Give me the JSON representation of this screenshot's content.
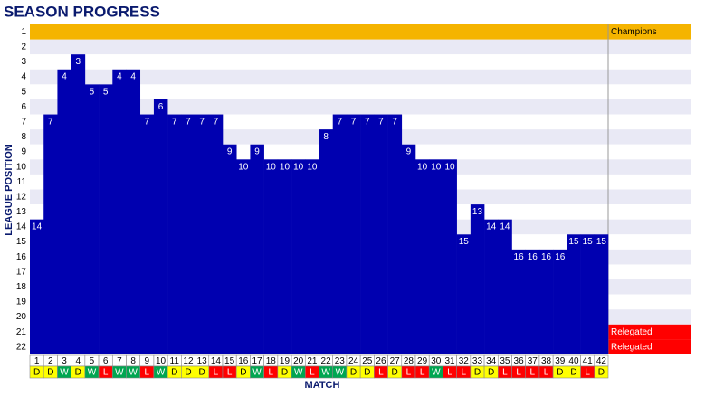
{
  "chart_data": {
    "type": "position",
    "title": "SEASON PROGRESS",
    "x_label": "MATCH",
    "y_label": "LEAGUE POSITION",
    "categories": [
      1,
      2,
      3,
      4,
      5,
      6,
      7,
      8,
      9,
      10,
      11,
      12,
      13,
      14,
      15,
      16,
      17,
      18,
      19,
      20,
      21,
      22,
      23,
      24,
      25,
      26,
      27,
      28,
      29,
      30,
      31,
      32,
      33,
      34,
      35,
      36,
      37,
      38,
      39,
      40,
      41,
      42
    ],
    "values": [
      14,
      7,
      4,
      3,
      5,
      5,
      4,
      4,
      7,
      6,
      7,
      7,
      7,
      7,
      9,
      10,
      9,
      10,
      10,
      10,
      10,
      8,
      7,
      7,
      7,
      7,
      7,
      9,
      10,
      10,
      10,
      15,
      13,
      14,
      14,
      16,
      16,
      16,
      16,
      15,
      15,
      15
    ],
    "results": [
      "D",
      "D",
      "W",
      "D",
      "W",
      "L",
      "W",
      "W",
      "L",
      "W",
      "D",
      "D",
      "D",
      "L",
      "L",
      "D",
      "W",
      "L",
      "D",
      "W",
      "L",
      "W",
      "W",
      "D",
      "D",
      "L",
      "D",
      "L",
      "L",
      "W",
      "L",
      "L",
      "D",
      "D",
      "L",
      "L",
      "L",
      "L",
      "D",
      "D",
      "L",
      "D"
    ],
    "result_colors": {
      "W": "#00a651",
      "D": "#ffff00",
      "L": "#ff0000"
    },
    "color": "#0000b0",
    "ylim": [
      1,
      22
    ],
    "y_inverted": true,
    "yticks": [
      1,
      2,
      3,
      4,
      5,
      6,
      7,
      8,
      9,
      10,
      11,
      12,
      13,
      14,
      15,
      16,
      17,
      18,
      19,
      20,
      21,
      22
    ],
    "zones": [
      {
        "position": 1,
        "label": "Champions",
        "color": "#f5b400",
        "full_row": true
      },
      {
        "position": 21,
        "label": "Relegated",
        "color": "#ff0000",
        "full_row": false
      },
      {
        "position": 22,
        "label": "Relegated",
        "color": "#ff0000",
        "full_row": false
      }
    ]
  }
}
